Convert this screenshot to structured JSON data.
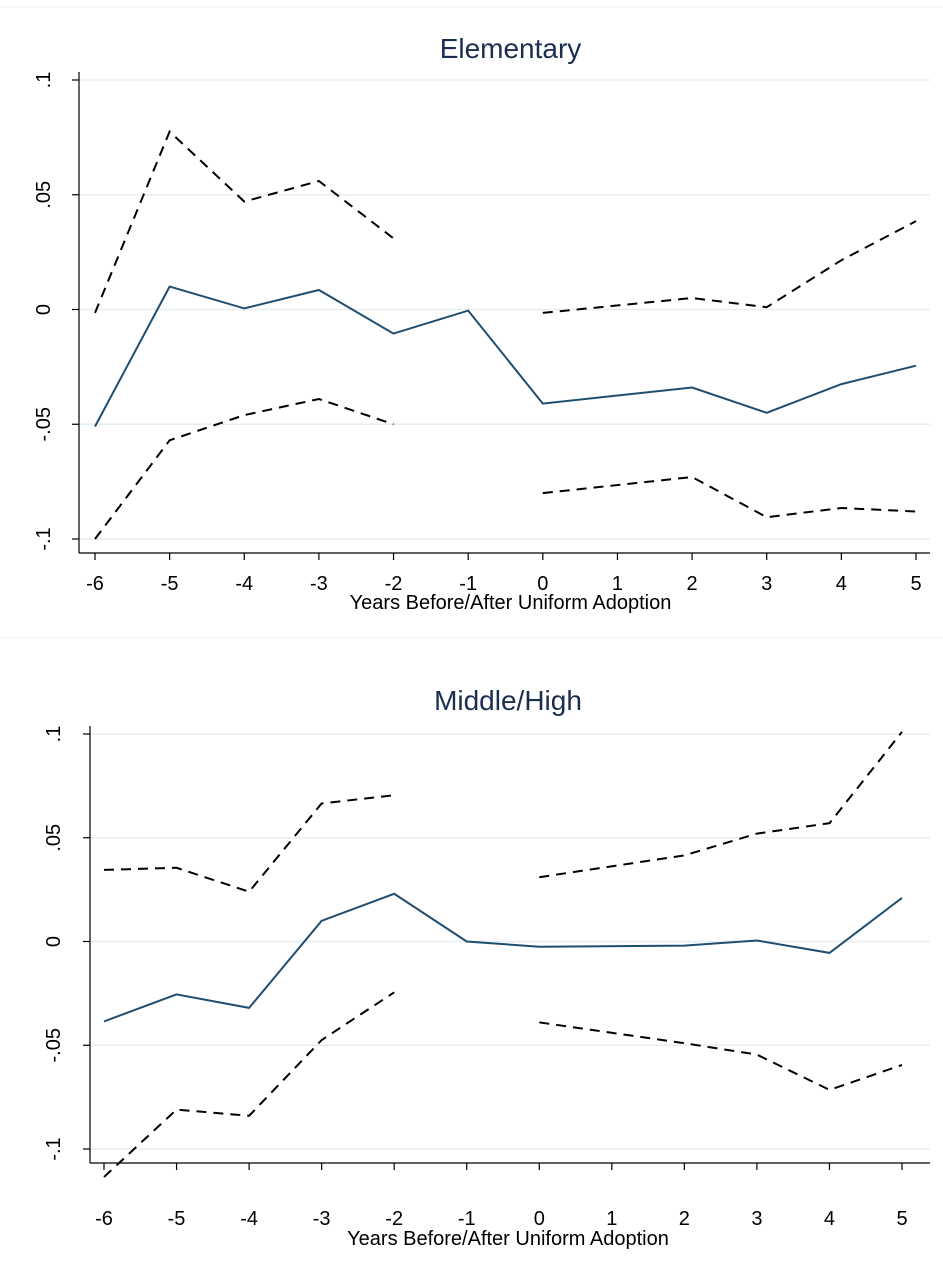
{
  "chart_data": [
    {
      "type": "line",
      "title": "Elementary",
      "xlabel": "Years Before/After Uniform Adoption",
      "ylabel": "",
      "x_ticks": [
        -6,
        -5,
        -4,
        -3,
        -2,
        -1,
        0,
        1,
        2,
        3,
        4,
        5
      ],
      "x_tick_labels": [
        "-6",
        "-5",
        "-4",
        "-3",
        "-2",
        "-1",
        "0",
        "1",
        "2",
        "3",
        "4",
        "5"
      ],
      "y_ticks": [
        -0.1,
        -0.05,
        0,
        0.05,
        0.1
      ],
      "y_tick_labels": [
        "-.1",
        "-.05",
        "0",
        ".05",
        ".1"
      ],
      "xlim": [
        -6,
        5
      ],
      "ylim": [
        -0.1,
        0.1
      ],
      "grid": true,
      "series": [
        {
          "role": "estimate",
          "style": "solid",
          "x": [
            -6,
            -5,
            -4,
            -3,
            -2,
            -1,
            0,
            2,
            3,
            4,
            5
          ],
          "y": [
            -0.051,
            0.01,
            0.0005,
            0.0085,
            -0.0105,
            -0.0005,
            -0.041,
            -0.034,
            -0.045,
            -0.0325,
            -0.0245
          ]
        },
        {
          "role": "upper-ci-pre",
          "style": "dashed",
          "x": [
            -6,
            -5,
            -4,
            -3,
            -2
          ],
          "y": [
            -0.0015,
            0.0775,
            0.047,
            0.056,
            0.031
          ]
        },
        {
          "role": "upper-ci-post",
          "style": "dashed",
          "x": [
            0,
            2,
            3,
            4,
            5
          ],
          "y": [
            -0.0015,
            0.005,
            0.001,
            0.0215,
            0.0385
          ]
        },
        {
          "role": "lower-ci-pre",
          "style": "dashed",
          "x": [
            -6,
            -5,
            -4,
            -3,
            -2
          ],
          "y": [
            -0.1,
            -0.057,
            -0.046,
            -0.039,
            -0.05
          ]
        },
        {
          "role": "lower-ci-post",
          "style": "dashed",
          "x": [
            0,
            2,
            3,
            4,
            5
          ],
          "y": [
            -0.08,
            -0.073,
            -0.0905,
            -0.0865,
            -0.088
          ]
        }
      ]
    },
    {
      "type": "line",
      "title": "Middle/High",
      "xlabel": "Years Before/After Uniform Adoption",
      "ylabel": "",
      "x_ticks": [
        -6,
        -5,
        -4,
        -3,
        -2,
        -1,
        0,
        1,
        2,
        3,
        4,
        5
      ],
      "x_tick_labels": [
        "-6",
        "-5",
        "-4",
        "-3",
        "-2",
        "-1",
        "0",
        "1",
        "2",
        "3",
        "4",
        "5"
      ],
      "y_ticks": [
        -0.1,
        -0.05,
        0,
        0.05,
        0.1
      ],
      "y_tick_labels": [
        "-.1",
        "-.05",
        "0",
        ".05",
        ".1"
      ],
      "xlim": [
        -6,
        5
      ],
      "ylim": [
        -0.1,
        0.1
      ],
      "grid": true,
      "series": [
        {
          "role": "estimate",
          "style": "solid",
          "x": [
            -6,
            -5,
            -4,
            -3,
            -2,
            -1,
            0,
            2,
            3,
            4,
            5
          ],
          "y": [
            -0.0385,
            -0.0255,
            -0.032,
            0.01,
            0.023,
            0.0,
            -0.0025,
            -0.002,
            0.0005,
            -0.0055,
            0.021
          ]
        },
        {
          "role": "upper-ci-pre",
          "style": "dashed",
          "x": [
            -6,
            -5,
            -4,
            -3,
            -2
          ],
          "y": [
            0.0345,
            0.0355,
            0.024,
            0.0665,
            0.0705
          ]
        },
        {
          "role": "upper-ci-post",
          "style": "dashed",
          "x": [
            0,
            2,
            3,
            4,
            5
          ],
          "y": [
            0.031,
            0.0415,
            0.052,
            0.057,
            0.101
          ]
        },
        {
          "role": "lower-ci-pre",
          "style": "dashed",
          "x": [
            -6,
            -5,
            -4,
            -3,
            -2
          ],
          "y": [
            -0.1135,
            -0.081,
            -0.084,
            -0.0475,
            -0.0245
          ]
        },
        {
          "role": "lower-ci-post",
          "style": "dashed",
          "x": [
            0,
            2,
            3,
            4,
            5
          ],
          "y": [
            -0.039,
            -0.049,
            -0.0545,
            -0.0715,
            -0.0595
          ]
        }
      ]
    }
  ]
}
